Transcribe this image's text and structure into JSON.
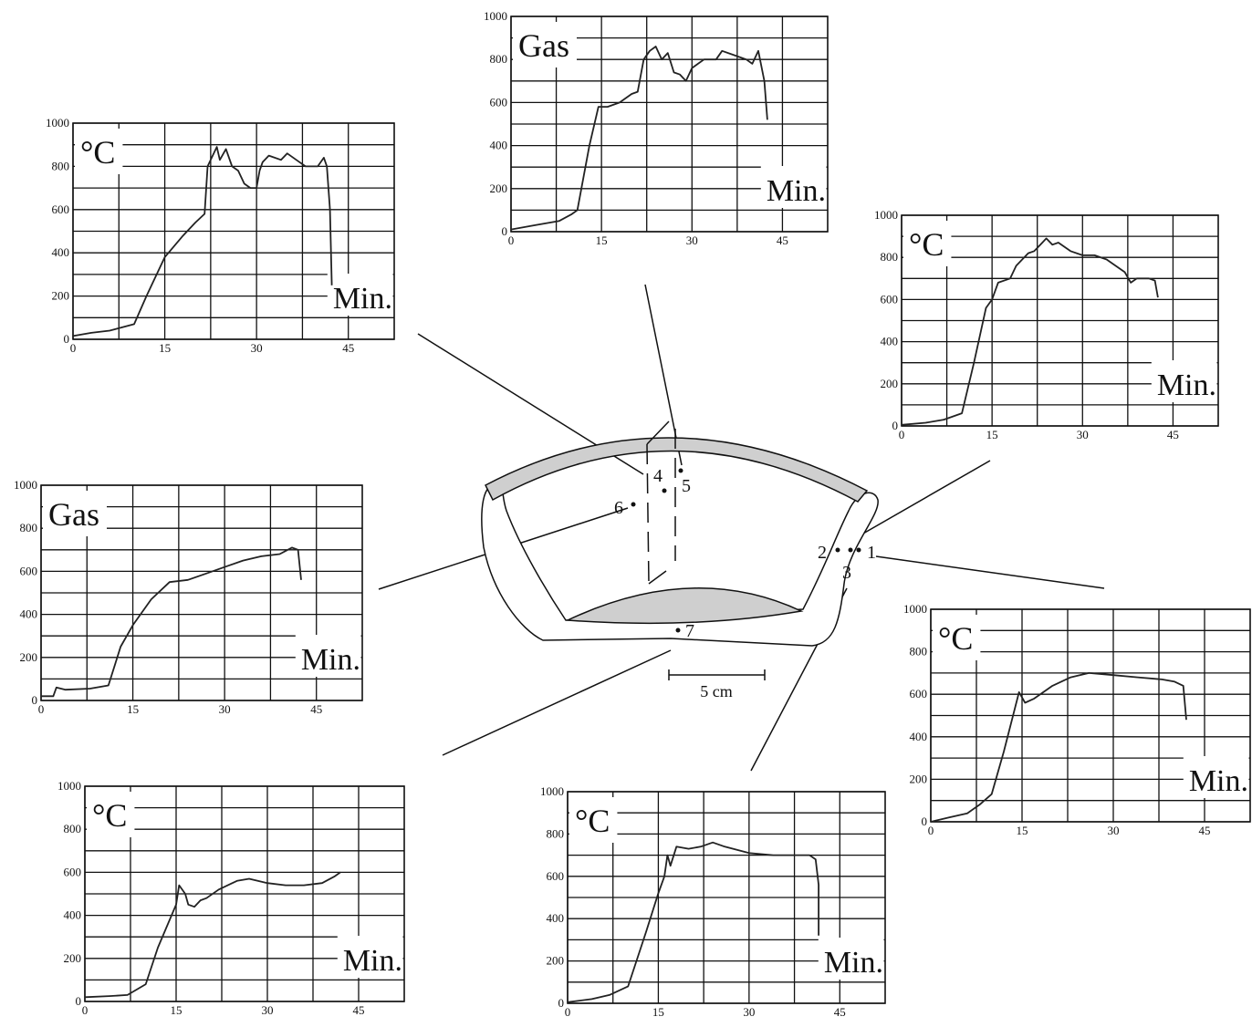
{
  "chart_data": [
    {
      "type": "line",
      "ylabel": "°C",
      "xlabel": "Min.",
      "xlim": [
        0,
        52.5
      ],
      "ylim": [
        0,
        1000
      ],
      "xticks": [
        0,
        15,
        30,
        45
      ],
      "yticks": [
        0,
        200,
        400,
        600,
        800,
        1000
      ],
      "color": "#222222",
      "x": [
        0,
        3,
        6,
        10,
        12,
        15,
        18,
        20,
        21.5,
        22,
        23,
        23.5,
        24,
        25,
        26,
        27,
        28,
        29,
        30,
        30.5,
        31,
        32,
        34,
        35,
        37,
        38,
        40,
        41,
        41.5,
        42,
        42.3
      ],
      "values": [
        15,
        30,
        40,
        70,
        200,
        380,
        480,
        540,
        580,
        800,
        860,
        890,
        830,
        880,
        800,
        780,
        720,
        700,
        700,
        780,
        820,
        850,
        830,
        860,
        820,
        800,
        800,
        840,
        800,
        600,
        250
      ]
    },
    {
      "type": "line",
      "ylabel": "Gas",
      "xlabel": "Min.",
      "xlim": [
        0,
        52.5
      ],
      "ylim": [
        0,
        1000
      ],
      "xticks": [
        0,
        15,
        30,
        45
      ],
      "yticks": [
        0,
        200,
        400,
        600,
        800,
        1000
      ],
      "color": "#222222",
      "x": [
        0,
        4,
        8,
        10,
        11,
        13,
        14.5,
        16,
        18,
        20,
        21,
        22,
        23,
        24,
        25,
        26,
        27,
        28,
        29,
        30,
        31,
        32,
        34,
        35,
        37,
        39,
        40,
        41,
        42,
        42.5
      ],
      "values": [
        10,
        30,
        50,
        80,
        100,
        400,
        580,
        580,
        600,
        640,
        650,
        800,
        840,
        860,
        800,
        830,
        740,
        730,
        700,
        760,
        780,
        800,
        800,
        840,
        820,
        800,
        780,
        840,
        700,
        520
      ]
    },
    {
      "type": "line",
      "ylabel": "°C",
      "xlabel": "Min.",
      "xlim": [
        0,
        52.5
      ],
      "ylim": [
        0,
        1000
      ],
      "xticks": [
        0,
        15,
        30,
        45
      ],
      "yticks": [
        0,
        200,
        400,
        600,
        800,
        1000
      ],
      "color": "#222222",
      "x": [
        0,
        4,
        7,
        10,
        12,
        14,
        15,
        16,
        18,
        19,
        21,
        22,
        24,
        25,
        26,
        28,
        30,
        32,
        34,
        35,
        37,
        38,
        39,
        41,
        42,
        42.5
      ],
      "values": [
        5,
        15,
        30,
        60,
        300,
        560,
        600,
        680,
        700,
        760,
        820,
        830,
        890,
        860,
        870,
        830,
        810,
        810,
        790,
        770,
        730,
        680,
        700,
        700,
        690,
        610
      ]
    },
    {
      "type": "line",
      "ylabel": "Gas",
      "xlabel": "Min.",
      "xlim": [
        0,
        52.5
      ],
      "ylim": [
        0,
        1000
      ],
      "xticks": [
        0,
        15,
        30,
        45
      ],
      "yticks": [
        0,
        200,
        400,
        600,
        800,
        1000
      ],
      "color": "#222222",
      "x": [
        0,
        2,
        2.5,
        4,
        8,
        11,
        13,
        15,
        18,
        21,
        24,
        27,
        30,
        33,
        36,
        39,
        41,
        42,
        42.5
      ],
      "values": [
        20,
        20,
        60,
        50,
        55,
        70,
        250,
        350,
        470,
        550,
        560,
        590,
        620,
        650,
        670,
        680,
        710,
        700,
        560
      ]
    },
    {
      "type": "line",
      "ylabel": "°C",
      "xlabel": "Min.",
      "xlim": [
        0,
        52.5
      ],
      "ylim": [
        0,
        1000
      ],
      "xticks": [
        0,
        15,
        30,
        45
      ],
      "yticks": [
        0,
        200,
        400,
        600,
        800,
        1000
      ],
      "color": "#222222",
      "x": [
        0,
        3,
        6,
        8,
        10,
        12,
        14.5,
        15.5,
        17,
        20,
        23,
        26,
        30,
        34,
        38,
        40,
        41.5,
        42
      ],
      "values": [
        0,
        20,
        40,
        80,
        130,
        330,
        610,
        560,
        580,
        640,
        680,
        700,
        690,
        680,
        670,
        660,
        640,
        480
      ]
    },
    {
      "type": "line",
      "ylabel": "°C",
      "xlabel": "Min.",
      "xlim": [
        0,
        52.5
      ],
      "ylim": [
        0,
        1000
      ],
      "xticks": [
        0,
        15,
        30,
        45
      ],
      "yticks": [
        0,
        200,
        400,
        600,
        800,
        1000
      ],
      "color": "#222222",
      "x": [
        0,
        4,
        7,
        10,
        12,
        15,
        15.5,
        16.5,
        17,
        18,
        19,
        20,
        22,
        25,
        27,
        30,
        33,
        36,
        39,
        41,
        42
      ],
      "values": [
        20,
        25,
        30,
        80,
        250,
        450,
        540,
        500,
        450,
        440,
        470,
        480,
        520,
        560,
        570,
        550,
        540,
        540,
        550,
        580,
        600
      ]
    },
    {
      "type": "line",
      "ylabel": "°C",
      "xlabel": "Min.",
      "xlim": [
        0,
        52.5
      ],
      "ylim": [
        0,
        1000
      ],
      "xticks": [
        0,
        15,
        30,
        45
      ],
      "yticks": [
        0,
        200,
        400,
        600,
        800,
        1000
      ],
      "color": "#222222",
      "x": [
        0,
        4,
        7,
        10,
        13,
        15,
        16,
        16.5,
        17,
        18,
        20,
        22,
        24,
        26,
        30,
        34,
        38,
        40,
        41,
        41.5,
        41.5
      ],
      "values": [
        5,
        20,
        40,
        80,
        340,
        520,
        600,
        700,
        650,
        740,
        730,
        740,
        760,
        740,
        710,
        700,
        700,
        700,
        680,
        560,
        320
      ]
    }
  ],
  "diagram": {
    "points": [
      "1",
      "2",
      "3",
      "4",
      "5",
      "6",
      "7"
    ],
    "scale": "5 cm"
  }
}
